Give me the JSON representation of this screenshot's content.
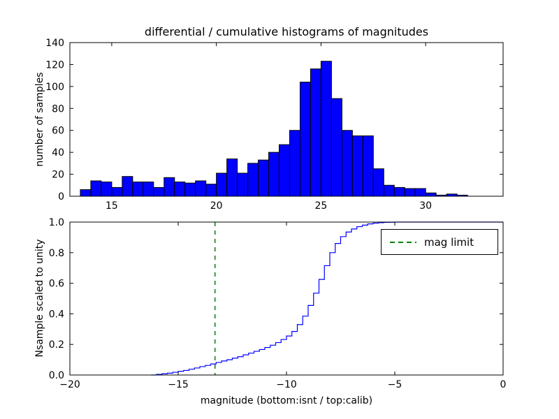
{
  "chart_data": [
    {
      "type": "bar",
      "subplot": "top",
      "title": "differential / cumulative histograms of magnitudes",
      "ylabel": "number of samples",
      "bar_color": "#0000ff",
      "bar_edge_color": "#000000",
      "bin_start": 13.5,
      "bin_width": 0.5,
      "values": [
        6,
        14,
        13,
        8,
        18,
        13,
        13,
        8,
        17,
        13,
        12,
        14,
        11,
        21,
        34,
        21,
        30,
        33,
        40,
        47,
        60,
        104,
        116,
        123,
        89,
        60,
        55,
        55,
        25,
        10,
        8,
        7,
        7,
        3,
        1,
        2,
        1
      ],
      "xlim": [
        13,
        33.7
      ],
      "ylim": [
        0,
        140
      ],
      "xticks": [
        15,
        20,
        25,
        30
      ],
      "xtick_labels": [
        "15",
        "20",
        "25",
        "30"
      ],
      "yticks": [
        0,
        20,
        40,
        60,
        80,
        100,
        120,
        140
      ],
      "ytick_labels": [
        "0",
        "20",
        "40",
        "60",
        "80",
        "100",
        "120",
        "140"
      ],
      "grid": false,
      "legend": null
    },
    {
      "type": "line",
      "subplot": "bottom",
      "style": "step",
      "xlabel": "magnitude (bottom:isnt / top:calib)",
      "ylabel": "Nsample scaled to unity",
      "line_color": "#0000ff",
      "xlim": [
        -20,
        0
      ],
      "ylim": [
        0,
        1
      ],
      "xticks": [
        -20,
        -15,
        -10,
        -5,
        0
      ],
      "xtick_labels": [
        "−20",
        "−15",
        "−10",
        "−5",
        "0"
      ],
      "yticks": [
        0,
        0.2,
        0.4,
        0.6,
        0.8,
        1.0
      ],
      "ytick_labels": [
        "0.0",
        "0.2",
        "0.4",
        "0.6",
        "0.8",
        "1.0"
      ],
      "points": [
        [
          -16.25,
          0.0
        ],
        [
          -16.0,
          0.004
        ],
        [
          -15.75,
          0.008
        ],
        [
          -15.5,
          0.012
        ],
        [
          -15.25,
          0.018
        ],
        [
          -15.0,
          0.024
        ],
        [
          -14.75,
          0.03
        ],
        [
          -14.5,
          0.038
        ],
        [
          -14.25,
          0.046
        ],
        [
          -14.0,
          0.055
        ],
        [
          -13.75,
          0.063
        ],
        [
          -13.5,
          0.072
        ],
        [
          -13.25,
          0.082
        ],
        [
          -13.0,
          0.092
        ],
        [
          -12.75,
          0.1
        ],
        [
          -12.5,
          0.11
        ],
        [
          -12.25,
          0.12
        ],
        [
          -12.0,
          0.132
        ],
        [
          -11.75,
          0.143
        ],
        [
          -11.5,
          0.155
        ],
        [
          -11.25,
          0.167
        ],
        [
          -11.0,
          0.18
        ],
        [
          -10.75,
          0.195
        ],
        [
          -10.5,
          0.212
        ],
        [
          -10.25,
          0.232
        ],
        [
          -10.0,
          0.255
        ],
        [
          -9.75,
          0.285
        ],
        [
          -9.5,
          0.33
        ],
        [
          -9.25,
          0.385
        ],
        [
          -9.0,
          0.455
        ],
        [
          -8.75,
          0.535
        ],
        [
          -8.5,
          0.625
        ],
        [
          -8.25,
          0.715
        ],
        [
          -8.0,
          0.8
        ],
        [
          -7.75,
          0.86
        ],
        [
          -7.5,
          0.905
        ],
        [
          -7.25,
          0.935
        ],
        [
          -7.0,
          0.955
        ],
        [
          -6.75,
          0.97
        ],
        [
          -6.5,
          0.98
        ],
        [
          -6.25,
          0.988
        ],
        [
          -6.0,
          0.993
        ],
        [
          -5.75,
          0.996
        ],
        [
          -5.5,
          0.998
        ],
        [
          -5.25,
          0.999
        ],
        [
          -5.0,
          1.0
        ],
        [
          0.0,
          1.0
        ]
      ],
      "vline": {
        "x": -13.3,
        "color": "#008000",
        "style": "dashed"
      },
      "legend": {
        "label": "mag limit",
        "position": "upper right"
      },
      "grid": false
    }
  ]
}
